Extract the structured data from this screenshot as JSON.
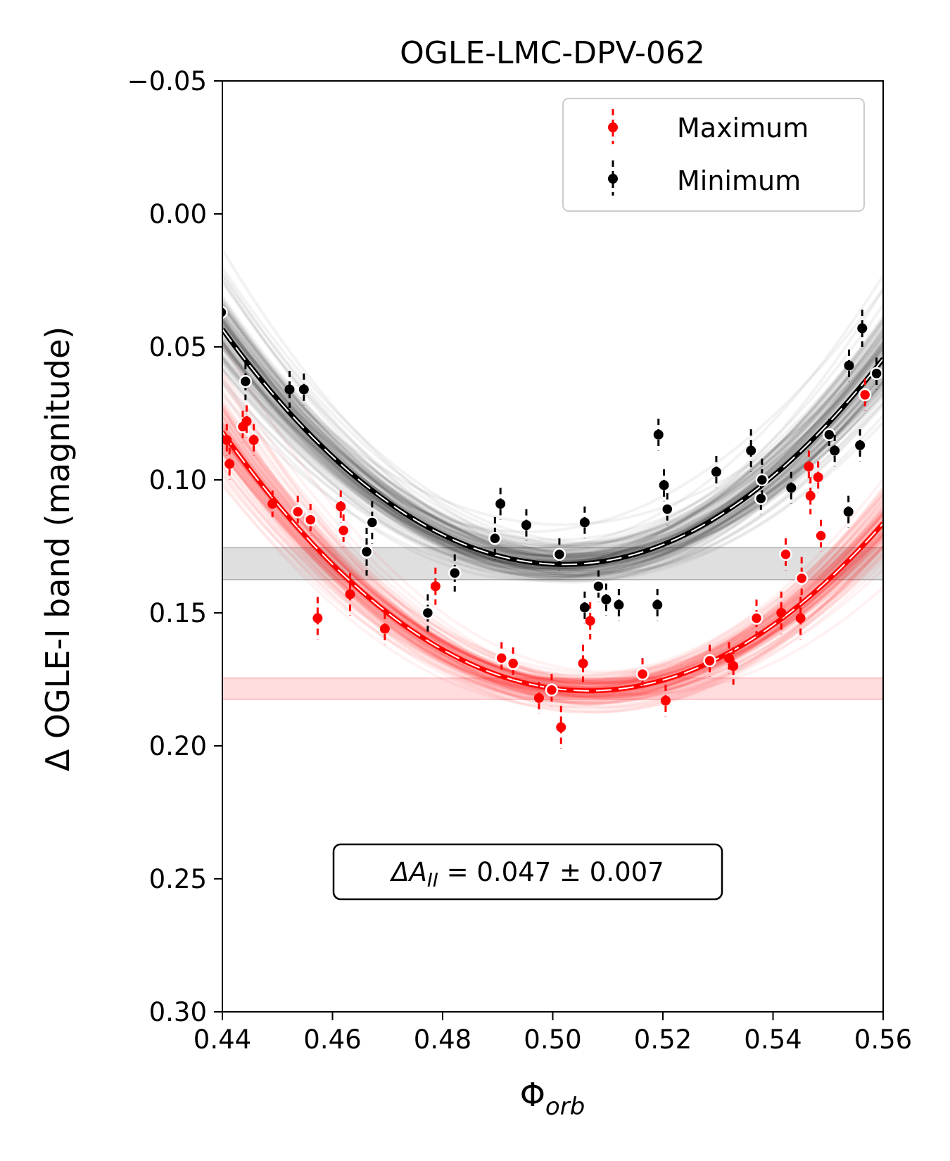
{
  "chart_data": {
    "type": "scatter",
    "title": "OGLE-LMC-DPV-062",
    "xlabel": "Φ",
    "xlabel_sub": "orb",
    "ylabel": "Δ OGLE-I band (magnitude)",
    "xlim": [
      0.44,
      0.56
    ],
    "ylim": [
      -0.05,
      0.3
    ],
    "y_inverted": true,
    "grid": false,
    "legend_position": "top-right",
    "x_ticks": [
      "0.44",
      "0.46",
      "0.48",
      "0.50",
      "0.52",
      "0.54",
      "0.56"
    ],
    "y_ticks": [
      "−0.05",
      "0.00",
      "0.05",
      "0.10",
      "0.15",
      "0.20",
      "0.25",
      "0.30"
    ],
    "x_tick_values": [
      0.44,
      0.46,
      0.48,
      0.5,
      0.52,
      0.54,
      0.56
    ],
    "y_tick_values": [
      -0.05,
      0.0,
      0.05,
      0.1,
      0.15,
      0.2,
      0.25,
      0.3
    ],
    "annotation": {
      "prefix": "ΔA",
      "sub": "II",
      "text": " = 0.047 ± 0.007"
    },
    "series": [
      {
        "name": "Maximum",
        "color": "#ff0000",
        "fit": {
          "min_x": 0.5065,
          "min_y": 0.1793,
          "a": 22.0
        },
        "band": [
          0.1745,
          0.1825
        ],
        "points": [
          {
            "x": 0.4408,
            "y": 0.085,
            "err": 0.006,
            "ring": false
          },
          {
            "x": 0.4413,
            "y": 0.094,
            "err": 0.006,
            "ring": false
          },
          {
            "x": 0.4437,
            "y": 0.08,
            "err": 0.006,
            "ring": true
          },
          {
            "x": 0.4444,
            "y": 0.078,
            "err": 0.006,
            "ring": false
          },
          {
            "x": 0.4457,
            "y": 0.085,
            "err": 0.006,
            "ring": false
          },
          {
            "x": 0.4491,
            "y": 0.109,
            "err": 0.005,
            "ring": false
          },
          {
            "x": 0.4537,
            "y": 0.112,
            "err": 0.006,
            "ring": true
          },
          {
            "x": 0.456,
            "y": 0.115,
            "err": 0.006,
            "ring": true
          },
          {
            "x": 0.4573,
            "y": 0.152,
            "err": 0.008,
            "ring": false
          },
          {
            "x": 0.4615,
            "y": 0.11,
            "err": 0.006,
            "ring": false
          },
          {
            "x": 0.462,
            "y": 0.119,
            "err": 0.006,
            "ring": true
          },
          {
            "x": 0.4632,
            "y": 0.143,
            "err": 0.008,
            "ring": false
          },
          {
            "x": 0.4695,
            "y": 0.156,
            "err": 0.006,
            "ring": false
          },
          {
            "x": 0.4787,
            "y": 0.14,
            "err": 0.007,
            "ring": false
          },
          {
            "x": 0.4907,
            "y": 0.167,
            "err": 0.006,
            "ring": true
          },
          {
            "x": 0.4928,
            "y": 0.169,
            "err": 0.006,
            "ring": true
          },
          {
            "x": 0.4975,
            "y": 0.182,
            "err": 0.006,
            "ring": false
          },
          {
            "x": 0.4998,
            "y": 0.179,
            "err": 0.006,
            "ring": true
          },
          {
            "x": 0.5015,
            "y": 0.193,
            "err": 0.008,
            "ring": false
          },
          {
            "x": 0.5055,
            "y": 0.169,
            "err": 0.007,
            "ring": false
          },
          {
            "x": 0.5068,
            "y": 0.153,
            "err": 0.007,
            "ring": false
          },
          {
            "x": 0.5163,
            "y": 0.173,
            "err": 0.006,
            "ring": true
          },
          {
            "x": 0.5205,
            "y": 0.183,
            "err": 0.006,
            "ring": false
          },
          {
            "x": 0.5285,
            "y": 0.168,
            "err": 0.006,
            "ring": true
          },
          {
            "x": 0.532,
            "y": 0.167,
            "err": 0.006,
            "ring": false
          },
          {
            "x": 0.5328,
            "y": 0.17,
            "err": 0.007,
            "ring": false
          },
          {
            "x": 0.537,
            "y": 0.152,
            "err": 0.007,
            "ring": true
          },
          {
            "x": 0.5415,
            "y": 0.15,
            "err": 0.008,
            "ring": false
          },
          {
            "x": 0.5423,
            "y": 0.128,
            "err": 0.006,
            "ring": true
          },
          {
            "x": 0.545,
            "y": 0.152,
            "err": 0.008,
            "ring": false
          },
          {
            "x": 0.5452,
            "y": 0.137,
            "err": 0.008,
            "ring": true
          },
          {
            "x": 0.5465,
            "y": 0.095,
            "err": 0.006,
            "ring": false
          },
          {
            "x": 0.5468,
            "y": 0.106,
            "err": 0.007,
            "ring": false
          },
          {
            "x": 0.5482,
            "y": 0.099,
            "err": 0.006,
            "ring": false
          },
          {
            "x": 0.5487,
            "y": 0.121,
            "err": 0.006,
            "ring": true
          },
          {
            "x": 0.5567,
            "y": 0.068,
            "err": 0.006,
            "ring": true
          }
        ]
      },
      {
        "name": "Minimum",
        "color": "#000000",
        "fit": {
          "min_x": 0.502,
          "min_y": 0.1318,
          "a": 23.0
        },
        "band": [
          0.1255,
          0.1375
        ],
        "points": [
          {
            "x": 0.4398,
            "y": 0.037,
            "err": 0.006,
            "ring": true
          },
          {
            "x": 0.4442,
            "y": 0.063,
            "err": 0.007,
            "ring": true
          },
          {
            "x": 0.4522,
            "y": 0.066,
            "err": 0.007,
            "ring": false
          },
          {
            "x": 0.4548,
            "y": 0.066,
            "err": 0.006,
            "ring": false
          },
          {
            "x": 0.4662,
            "y": 0.127,
            "err": 0.009,
            "ring": true
          },
          {
            "x": 0.4672,
            "y": 0.116,
            "err": 0.008,
            "ring": true
          },
          {
            "x": 0.4773,
            "y": 0.15,
            "err": 0.007,
            "ring": true
          },
          {
            "x": 0.4822,
            "y": 0.135,
            "err": 0.007,
            "ring": true
          },
          {
            "x": 0.4895,
            "y": 0.122,
            "err": 0.008,
            "ring": true
          },
          {
            "x": 0.4905,
            "y": 0.109,
            "err": 0.006,
            "ring": false
          },
          {
            "x": 0.4952,
            "y": 0.117,
            "err": 0.006,
            "ring": false
          },
          {
            "x": 0.5012,
            "y": 0.128,
            "err": 0.006,
            "ring": true
          },
          {
            "x": 0.5058,
            "y": 0.116,
            "err": 0.006,
            "ring": false
          },
          {
            "x": 0.5058,
            "y": 0.148,
            "err": 0.006,
            "ring": false
          },
          {
            "x": 0.5083,
            "y": 0.14,
            "err": 0.006,
            "ring": true
          },
          {
            "x": 0.5097,
            "y": 0.145,
            "err": 0.006,
            "ring": false
          },
          {
            "x": 0.512,
            "y": 0.147,
            "err": 0.006,
            "ring": false
          },
          {
            "x": 0.5192,
            "y": 0.083,
            "err": 0.006,
            "ring": false
          },
          {
            "x": 0.519,
            "y": 0.147,
            "err": 0.006,
            "ring": false
          },
          {
            "x": 0.5202,
            "y": 0.102,
            "err": 0.006,
            "ring": false
          },
          {
            "x": 0.5208,
            "y": 0.111,
            "err": 0.006,
            "ring": true
          },
          {
            "x": 0.5297,
            "y": 0.097,
            "err": 0.006,
            "ring": false
          },
          {
            "x": 0.536,
            "y": 0.089,
            "err": 0.008,
            "ring": false
          },
          {
            "x": 0.5378,
            "y": 0.107,
            "err": 0.006,
            "ring": true
          },
          {
            "x": 0.538,
            "y": 0.1,
            "err": 0.008,
            "ring": true
          },
          {
            "x": 0.5433,
            "y": 0.103,
            "err": 0.006,
            "ring": false
          },
          {
            "x": 0.5502,
            "y": 0.083,
            "err": 0.006,
            "ring": true
          },
          {
            "x": 0.5512,
            "y": 0.089,
            "err": 0.006,
            "ring": false
          },
          {
            "x": 0.5538,
            "y": 0.057,
            "err": 0.006,
            "ring": false
          },
          {
            "x": 0.5537,
            "y": 0.112,
            "err": 0.006,
            "ring": false
          },
          {
            "x": 0.5558,
            "y": 0.087,
            "err": 0.006,
            "ring": false
          },
          {
            "x": 0.5562,
            "y": 0.043,
            "err": 0.007,
            "ring": false
          },
          {
            "x": 0.5588,
            "y": 0.06,
            "err": 0.006,
            "ring": true
          }
        ]
      }
    ]
  }
}
